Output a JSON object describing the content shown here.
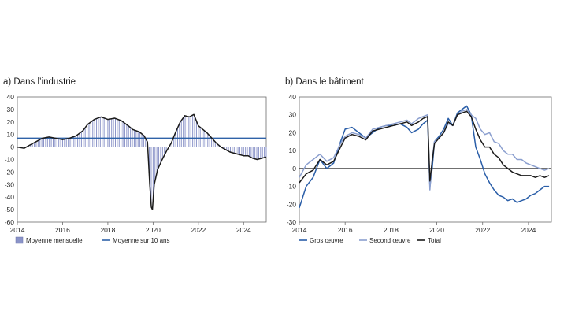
{
  "chart_data": [
    {
      "type": "bar+line",
      "title": "a)  Dans l’industrie",
      "xlim": [
        2014,
        2025
      ],
      "ylim": [
        -60,
        40
      ],
      "x_ticks": [
        "2014",
        "2016",
        "2018",
        "2020",
        "2022",
        "2024"
      ],
      "y_ticks": [
        "40",
        "30",
        "20",
        "10",
        "0",
        "-10",
        "-20",
        "-30",
        "-40",
        "-50",
        "-60"
      ],
      "grid": false,
      "legend_position": "bottom",
      "reference_line": {
        "name": "Moyenne sur 10 ans",
        "value": 7,
        "color": "#2f62a8"
      },
      "bars": {
        "name": "Moyenne mensuelle",
        "color": "#8a93c8"
      },
      "series": [
        {
          "name": "Moyenne mensuelle",
          "color": "#1b1b1b",
          "points": [
            [
              2014.0,
              0
            ],
            [
              2014.3,
              -1
            ],
            [
              2014.6,
              2
            ],
            [
              2014.9,
              5
            ],
            [
              2015.1,
              7
            ],
            [
              2015.4,
              8
            ],
            [
              2015.7,
              7
            ],
            [
              2016.0,
              6
            ],
            [
              2016.3,
              7
            ],
            [
              2016.6,
              9
            ],
            [
              2016.9,
              13
            ],
            [
              2017.1,
              18
            ],
            [
              2017.4,
              22
            ],
            [
              2017.7,
              24
            ],
            [
              2018.0,
              22
            ],
            [
              2018.3,
              23
            ],
            [
              2018.6,
              21
            ],
            [
              2018.9,
              17
            ],
            [
              2019.1,
              14
            ],
            [
              2019.4,
              12
            ],
            [
              2019.6,
              9
            ],
            [
              2019.75,
              4
            ],
            [
              2019.85,
              -30
            ],
            [
              2019.92,
              -48
            ],
            [
              2019.97,
              -50
            ],
            [
              2020.05,
              -30
            ],
            [
              2020.2,
              -18
            ],
            [
              2020.4,
              -10
            ],
            [
              2020.6,
              -3
            ],
            [
              2020.8,
              3
            ],
            [
              2021.0,
              12
            ],
            [
              2021.2,
              20
            ],
            [
              2021.4,
              25
            ],
            [
              2021.6,
              24
            ],
            [
              2021.8,
              26
            ],
            [
              2022.0,
              17
            ],
            [
              2022.2,
              14
            ],
            [
              2022.4,
              11
            ],
            [
              2022.6,
              7
            ],
            [
              2022.8,
              3
            ],
            [
              2023.0,
              0
            ],
            [
              2023.2,
              -2
            ],
            [
              2023.4,
              -4
            ],
            [
              2023.6,
              -5
            ],
            [
              2023.8,
              -6
            ],
            [
              2024.0,
              -7
            ],
            [
              2024.2,
              -7
            ],
            [
              2024.4,
              -9
            ],
            [
              2024.6,
              -10
            ],
            [
              2024.8,
              -9
            ],
            [
              2025.0,
              -8
            ]
          ]
        }
      ]
    },
    {
      "type": "line",
      "title": "b)  Dans le bâtiment",
      "xlim": [
        2014,
        2025
      ],
      "ylim": [
        -30,
        40
      ],
      "x_ticks": [
        "2014",
        "2016",
        "2018",
        "2020",
        "2022",
        "2024"
      ],
      "y_ticks": [
        "40",
        "30",
        "20",
        "10",
        "0",
        "-10",
        "-20",
        "-30"
      ],
      "grid": false,
      "legend_position": "bottom",
      "series": [
        {
          "name": "Gros œuvre",
          "color": "#2a5ea8",
          "points": [
            [
              2014.0,
              -22
            ],
            [
              2014.3,
              -10
            ],
            [
              2014.6,
              -5
            ],
            [
              2014.9,
              5
            ],
            [
              2015.2,
              0
            ],
            [
              2015.5,
              3
            ],
            [
              2015.8,
              15
            ],
            [
              2016.0,
              22
            ],
            [
              2016.3,
              23
            ],
            [
              2016.6,
              20
            ],
            [
              2016.9,
              17
            ],
            [
              2017.2,
              20
            ],
            [
              2017.5,
              23
            ],
            [
              2017.8,
              24
            ],
            [
              2018.1,
              24
            ],
            [
              2018.4,
              25
            ],
            [
              2018.7,
              23
            ],
            [
              2018.9,
              20
            ],
            [
              2019.2,
              22
            ],
            [
              2019.4,
              25
            ],
            [
              2019.6,
              27
            ],
            [
              2019.7,
              -10
            ],
            [
              2019.8,
              0
            ],
            [
              2019.9,
              15
            ],
            [
              2020.1,
              18
            ],
            [
              2020.3,
              22
            ],
            [
              2020.5,
              28
            ],
            [
              2020.7,
              24
            ],
            [
              2020.9,
              31
            ],
            [
              2021.1,
              33
            ],
            [
              2021.3,
              35
            ],
            [
              2021.5,
              30
            ],
            [
              2021.7,
              12
            ],
            [
              2021.9,
              5
            ],
            [
              2022.1,
              -3
            ],
            [
              2022.3,
              -8
            ],
            [
              2022.5,
              -12
            ],
            [
              2022.7,
              -15
            ],
            [
              2022.9,
              -16
            ],
            [
              2023.1,
              -18
            ],
            [
              2023.3,
              -17
            ],
            [
              2023.5,
              -19
            ],
            [
              2023.7,
              -18
            ],
            [
              2023.9,
              -17
            ],
            [
              2024.1,
              -15
            ],
            [
              2024.3,
              -14
            ],
            [
              2024.5,
              -12
            ],
            [
              2024.7,
              -10
            ],
            [
              2024.9,
              -10
            ]
          ]
        },
        {
          "name": "Second œuvre",
          "color": "#8b9fcf",
          "points": [
            [
              2014.0,
              -5
            ],
            [
              2014.3,
              2
            ],
            [
              2014.6,
              5
            ],
            [
              2014.9,
              8
            ],
            [
              2015.2,
              4
            ],
            [
              2015.5,
              6
            ],
            [
              2015.8,
              14
            ],
            [
              2016.0,
              18
            ],
            [
              2016.3,
              20
            ],
            [
              2016.6,
              19
            ],
            [
              2016.9,
              17
            ],
            [
              2017.2,
              22
            ],
            [
              2017.5,
              23
            ],
            [
              2017.8,
              24
            ],
            [
              2018.1,
              25
            ],
            [
              2018.4,
              26
            ],
            [
              2018.7,
              27
            ],
            [
              2018.9,
              25
            ],
            [
              2019.2,
              28
            ],
            [
              2019.4,
              29
            ],
            [
              2019.6,
              30
            ],
            [
              2019.7,
              -12
            ],
            [
              2019.8,
              5
            ],
            [
              2019.9,
              15
            ],
            [
              2020.1,
              17
            ],
            [
              2020.3,
              20
            ],
            [
              2020.5,
              25
            ],
            [
              2020.7,
              24
            ],
            [
              2020.9,
              30
            ],
            [
              2021.1,
              32
            ],
            [
              2021.3,
              33
            ],
            [
              2021.5,
              30
            ],
            [
              2021.7,
              28
            ],
            [
              2021.9,
              22
            ],
            [
              2022.1,
              19
            ],
            [
              2022.3,
              20
            ],
            [
              2022.5,
              15
            ],
            [
              2022.7,
              14
            ],
            [
              2022.9,
              10
            ],
            [
              2023.1,
              8
            ],
            [
              2023.3,
              8
            ],
            [
              2023.5,
              5
            ],
            [
              2023.7,
              5
            ],
            [
              2023.9,
              3
            ],
            [
              2024.1,
              2
            ],
            [
              2024.3,
              1
            ],
            [
              2024.5,
              0
            ],
            [
              2024.7,
              -1
            ],
            [
              2024.9,
              0
            ]
          ]
        },
        {
          "name": "Total",
          "color": "#1b1b1b",
          "points": [
            [
              2014.0,
              -8
            ],
            [
              2014.3,
              -3
            ],
            [
              2014.6,
              -1
            ],
            [
              2014.9,
              5
            ],
            [
              2015.2,
              2
            ],
            [
              2015.5,
              4
            ],
            [
              2015.8,
              12
            ],
            [
              2016.0,
              17
            ],
            [
              2016.3,
              19
            ],
            [
              2016.6,
              18
            ],
            [
              2016.9,
              16
            ],
            [
              2017.2,
              21
            ],
            [
              2017.5,
              22
            ],
            [
              2017.8,
              23
            ],
            [
              2018.1,
              24
            ],
            [
              2018.4,
              25
            ],
            [
              2018.7,
              26
            ],
            [
              2018.9,
              24
            ],
            [
              2019.2,
              26
            ],
            [
              2019.4,
              28
            ],
            [
              2019.6,
              29
            ],
            [
              2019.7,
              -7
            ],
            [
              2019.8,
              4
            ],
            [
              2019.9,
              14
            ],
            [
              2020.1,
              17
            ],
            [
              2020.3,
              20
            ],
            [
              2020.5,
              26
            ],
            [
              2020.7,
              24
            ],
            [
              2020.9,
              30
            ],
            [
              2021.1,
              31
            ],
            [
              2021.3,
              32
            ],
            [
              2021.5,
              29
            ],
            [
              2021.7,
              22
            ],
            [
              2021.9,
              16
            ],
            [
              2022.1,
              12
            ],
            [
              2022.3,
              12
            ],
            [
              2022.5,
              8
            ],
            [
              2022.7,
              6
            ],
            [
              2022.9,
              2
            ],
            [
              2023.1,
              0
            ],
            [
              2023.3,
              -2
            ],
            [
              2023.5,
              -3
            ],
            [
              2023.7,
              -4
            ],
            [
              2023.9,
              -4
            ],
            [
              2024.1,
              -4
            ],
            [
              2024.3,
              -5
            ],
            [
              2024.5,
              -4
            ],
            [
              2024.7,
              -5
            ],
            [
              2024.9,
              -4
            ]
          ]
        }
      ]
    }
  ]
}
